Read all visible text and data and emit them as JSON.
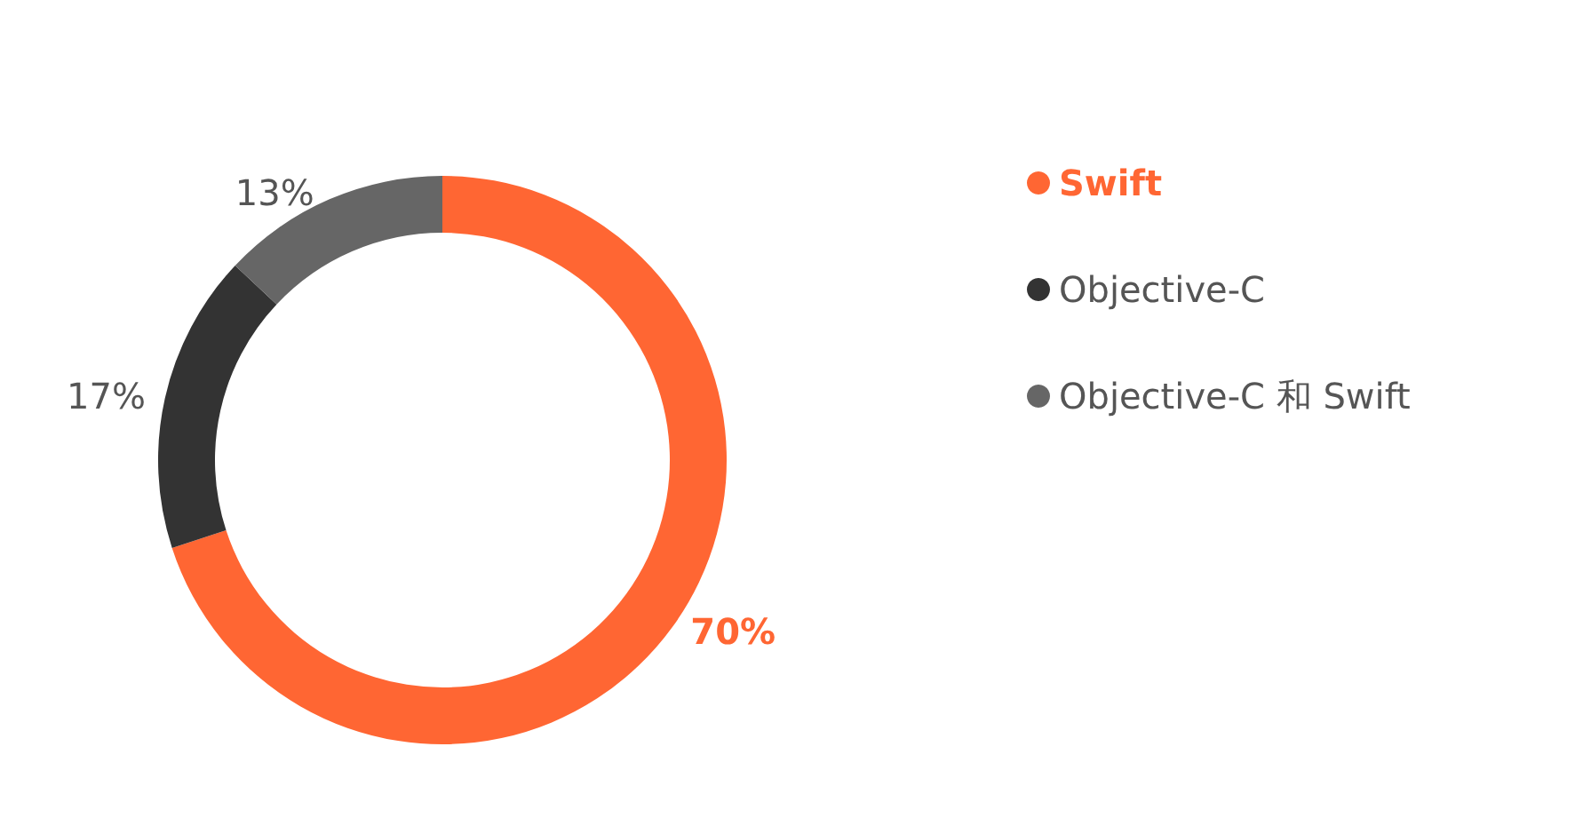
{
  "chart_data": {
    "type": "donut",
    "categories": [
      "Swift",
      "Objective-C",
      "Objective-C 和 Swift"
    ],
    "values": [
      70,
      17,
      13
    ],
    "colors": [
      "#ff6633",
      "#333333",
      "#666666"
    ],
    "value_labels": [
      "70%",
      "17%",
      "13%"
    ],
    "legend": "right"
  }
}
